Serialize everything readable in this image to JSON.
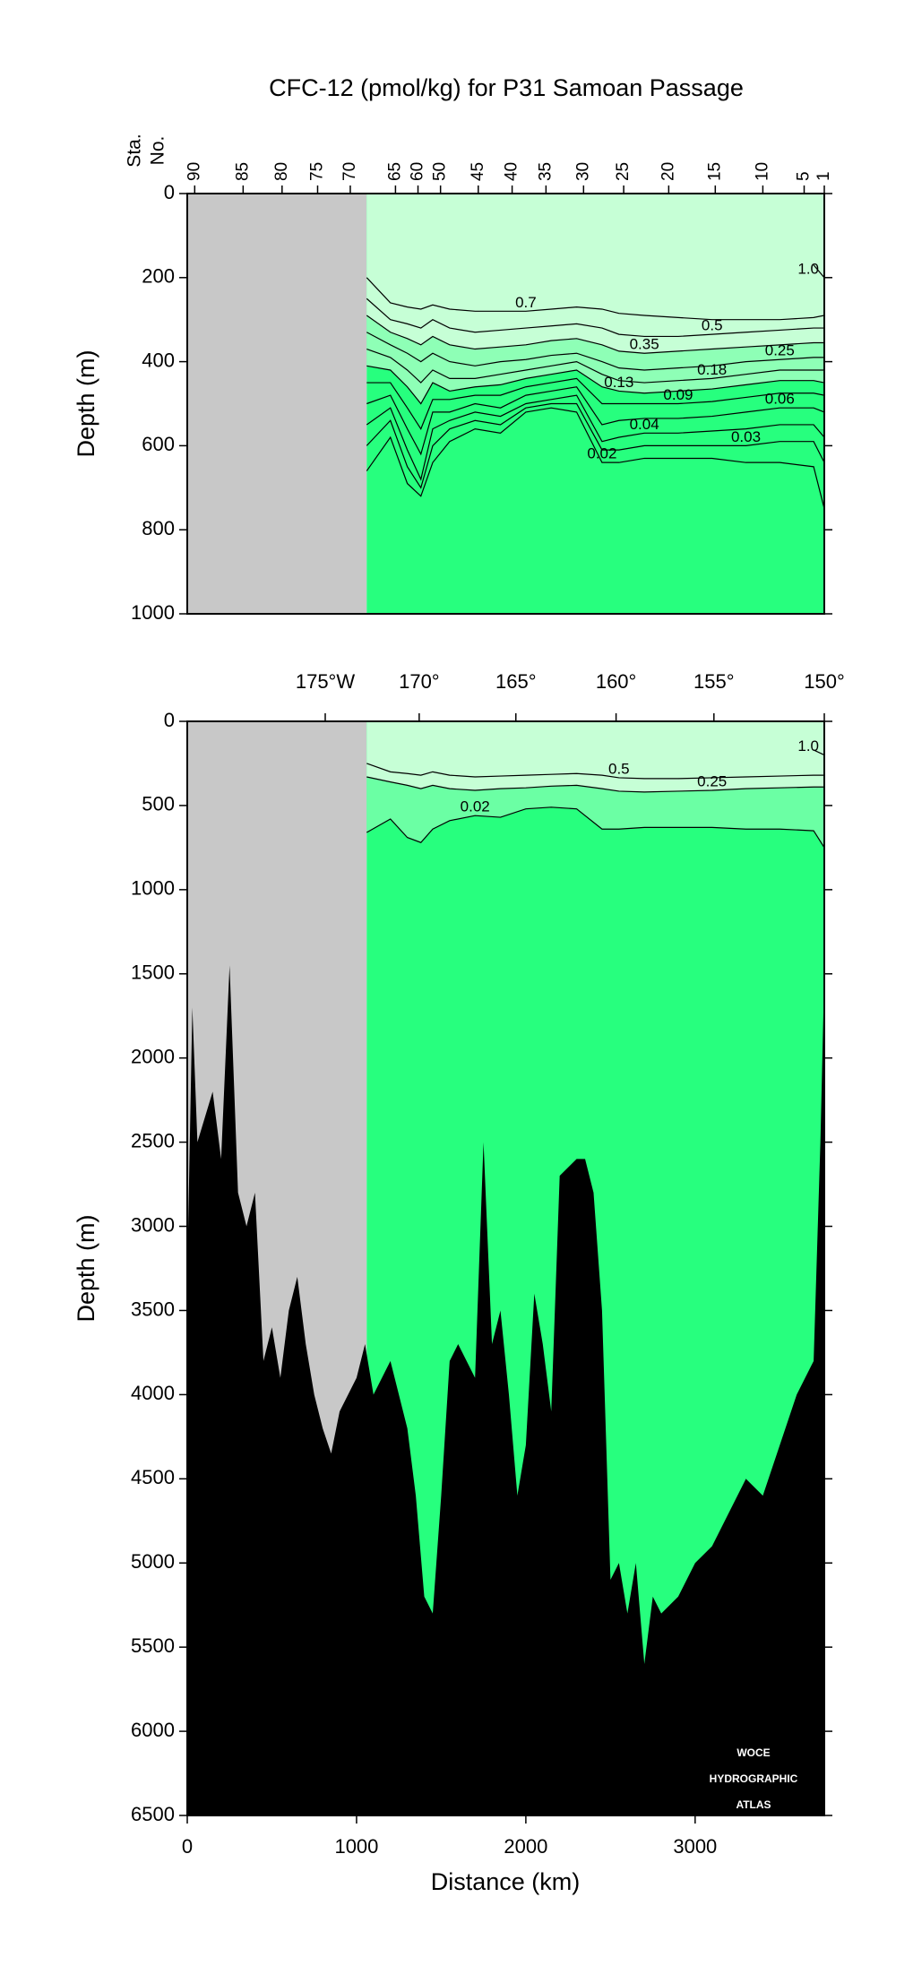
{
  "chart_data": [
    {
      "type": "section",
      "title": "CFC-12 (pmol/kg) for P31 Samoan Passage",
      "y_label": "Depth (m)",
      "station_label": [
        "Sta.",
        "No."
      ],
      "xlim": [
        0,
        3763
      ],
      "data_xlim": [
        1060,
        3763
      ],
      "ylim": [
        0,
        1000
      ],
      "yticks": [
        0,
        200,
        400,
        600,
        800,
        1000
      ],
      "station_ticks": [
        {
          "value": 44,
          "label": "90"
        },
        {
          "value": 330,
          "label": "85"
        },
        {
          "value": 560,
          "label": "80"
        },
        {
          "value": 770,
          "label": "75"
        },
        {
          "value": 963,
          "label": "70"
        },
        {
          "value": 1230,
          "label": "65"
        },
        {
          "value": 1363,
          "label": "60"
        },
        {
          "value": 1496,
          "label": "50"
        },
        {
          "value": 1719,
          "label": "45"
        },
        {
          "value": 1919,
          "label": "40"
        },
        {
          "value": 2119,
          "label": "35"
        },
        {
          "value": 2341,
          "label": "30"
        },
        {
          "value": 2578,
          "label": "25"
        },
        {
          "value": 2844,
          "label": "20"
        },
        {
          "value": 3119,
          "label": "15"
        },
        {
          "value": 3400,
          "label": "10"
        },
        {
          "value": 3644,
          "label": "5"
        },
        {
          "value": 3763,
          "label": "1"
        }
      ],
      "colors": {
        "no_data": "#c8c8c8",
        "ocean": "#27ff7e",
        "contour": "#000000",
        "frame": "#000000"
      },
      "contour_x": [
        1060,
        1200,
        1300,
        1380,
        1450,
        1550,
        1700,
        1850,
        2000,
        2150,
        2300,
        2450,
        2550,
        2700,
        2900,
        3100,
        3300,
        3500,
        3700,
        3763
      ],
      "contours": [
        {
          "level": {
            "value": 1,
            "label": "1.0"
          },
          "depth": [
            null,
            null,
            null,
            null,
            null,
            null,
            null,
            null,
            null,
            null,
            null,
            null,
            null,
            null,
            null,
            null,
            null,
            null,
            170,
            200
          ]
        },
        {
          "level": 0.7,
          "depth": [
            200,
            260,
            270,
            275,
            265,
            275,
            280,
            280,
            280,
            275,
            270,
            275,
            285,
            290,
            295,
            300,
            300,
            300,
            295,
            290
          ]
        },
        {
          "level": 0.5,
          "depth": [
            250,
            300,
            310,
            320,
            300,
            320,
            330,
            325,
            320,
            315,
            310,
            320,
            335,
            340,
            340,
            335,
            330,
            325,
            320,
            320
          ]
        },
        {
          "level": 0.35,
          "fill_above": "#c6ffd6",
          "depth": [
            290,
            330,
            345,
            360,
            340,
            360,
            370,
            365,
            360,
            350,
            345,
            360,
            375,
            380,
            375,
            370,
            365,
            360,
            355,
            355
          ]
        },
        {
          "level": 0.25,
          "depth": [
            330,
            360,
            380,
            400,
            380,
            400,
            410,
            400,
            395,
            385,
            380,
            400,
            415,
            420,
            415,
            410,
            400,
            395,
            390,
            390
          ]
        },
        {
          "level": 0.18,
          "depth": [
            370,
            390,
            420,
            450,
            420,
            440,
            440,
            430,
            420,
            410,
            400,
            430,
            445,
            450,
            445,
            440,
            430,
            420,
            420,
            420
          ]
        },
        {
          "level": 0.13,
          "fill_above": "#8effb6",
          "depth": [
            410,
            420,
            460,
            500,
            450,
            470,
            460,
            455,
            440,
            430,
            420,
            460,
            470,
            475,
            470,
            465,
            455,
            445,
            445,
            450
          ]
        },
        {
          "level": 0.09,
          "depth": [
            450,
            450,
            510,
            560,
            490,
            490,
            480,
            480,
            460,
            450,
            440,
            500,
            500,
            500,
            500,
            495,
            485,
            475,
            475,
            480
          ]
        },
        {
          "level": 0.06,
          "depth": [
            500,
            480,
            560,
            620,
            520,
            520,
            500,
            510,
            480,
            470,
            460,
            550,
            540,
            535,
            535,
            530,
            520,
            510,
            510,
            520
          ]
        },
        {
          "level": 0.04,
          "depth": [
            550,
            510,
            610,
            680,
            560,
            540,
            520,
            530,
            500,
            490,
            480,
            590,
            580,
            570,
            570,
            565,
            560,
            550,
            550,
            580
          ]
        },
        {
          "level": 0.03,
          "depth": [
            600,
            540,
            650,
            700,
            600,
            560,
            540,
            550,
            510,
            500,
            500,
            610,
            610,
            600,
            600,
            600,
            600,
            590,
            590,
            640
          ]
        },
        {
          "level": 0.02,
          "depth": [
            660,
            580,
            690,
            720,
            640,
            590,
            560,
            570,
            520,
            510,
            520,
            640,
            640,
            630,
            630,
            630,
            640,
            640,
            650,
            750
          ]
        }
      ]
    },
    {
      "type": "section",
      "y_label": "Depth (m)",
      "x_label": "Distance (km)",
      "xlim": [
        0,
        3763
      ],
      "data_xlim": [
        1060,
        3763
      ],
      "ylim": [
        0,
        6500
      ],
      "yticks": [
        0,
        500,
        1000,
        1500,
        2000,
        2500,
        3000,
        3500,
        4000,
        4500,
        5000,
        5500,
        6000,
        6500
      ],
      "xticks": [
        0,
        1000,
        2000,
        3000
      ],
      "longitude_ticks": [
        {
          "value": 815,
          "label": "175°W"
        },
        {
          "value": 1370,
          "label": "170°"
        },
        {
          "value": 1941,
          "label": "165°"
        },
        {
          "value": 2533,
          "label": "160°"
        },
        {
          "value": 3111,
          "label": "155°"
        },
        {
          "value": 3763,
          "label": "150°"
        }
      ],
      "colors": {
        "no_data": "#c8c8c8",
        "ocean": "#27ff7e",
        "contour": "#000000",
        "frame": "#000000",
        "bathymetry": "#000000",
        "watermark": "#ffffff"
      },
      "contour_x": [
        1060,
        1200,
        1300,
        1380,
        1450,
        1550,
        1700,
        1850,
        2000,
        2150,
        2300,
        2450,
        2550,
        2700,
        2900,
        3100,
        3300,
        3500,
        3700,
        3763
      ],
      "contours": [
        {
          "level": {
            "value": 1,
            "label": "1.0"
          },
          "depth": [
            null,
            null,
            null,
            null,
            null,
            null,
            null,
            null,
            null,
            null,
            null,
            null,
            null,
            null,
            null,
            null,
            null,
            null,
            170,
            200
          ]
        },
        {
          "level": 0.5,
          "depth": [
            250,
            300,
            310,
            320,
            300,
            320,
            330,
            325,
            320,
            315,
            310,
            320,
            335,
            340,
            340,
            335,
            330,
            325,
            320,
            320
          ]
        },
        {
          "level": 0.25,
          "fill_above": "#c6ffd6",
          "depth": [
            330,
            360,
            380,
            400,
            380,
            400,
            410,
            400,
            395,
            385,
            380,
            400,
            415,
            420,
            415,
            410,
            400,
            395,
            390,
            390
          ]
        },
        {
          "level": 0.02,
          "fill_above": "#6bffa4",
          "depth": [
            660,
            580,
            690,
            720,
            640,
            590,
            560,
            570,
            520,
            510,
            520,
            640,
            640,
            630,
            630,
            630,
            640,
            640,
            650,
            750
          ]
        }
      ],
      "bathymetry": {
        "x": [
          0,
          30,
          60,
          150,
          200,
          250,
          300,
          350,
          400,
          450,
          500,
          550,
          600,
          650,
          700,
          750,
          800,
          850,
          900,
          950,
          1000,
          1050,
          1100,
          1200,
          1300,
          1350,
          1400,
          1450,
          1500,
          1550,
          1600,
          1700,
          1750,
          1800,
          1850,
          1900,
          1950,
          2000,
          2050,
          2100,
          2150,
          2200,
          2300,
          2350,
          2400,
          2450,
          2500,
          2550,
          2600,
          2650,
          2700,
          2750,
          2800,
          2900,
          3000,
          3100,
          3200,
          3300,
          3400,
          3500,
          3600,
          3700,
          3740,
          3763
        ],
        "depth": [
          3300,
          1700,
          2500,
          2200,
          2600,
          1450,
          2800,
          3000,
          2800,
          3800,
          3600,
          3900,
          3500,
          3300,
          3700,
          4000,
          4200,
          4350,
          4100,
          4000,
          3900,
          3700,
          4000,
          3800,
          4200,
          4600,
          5200,
          5300,
          4600,
          3800,
          3700,
          3900,
          2500,
          3700,
          3500,
          4000,
          4600,
          4300,
          3400,
          3700,
          4100,
          2700,
          2600,
          2600,
          2800,
          3500,
          5100,
          5000,
          5300,
          5000,
          5600,
          5200,
          5300,
          5200,
          5000,
          4900,
          4700,
          4500,
          4600,
          4300,
          4000,
          3800,
          2500,
          1500
        ]
      },
      "watermark": [
        "WOCE",
        "HYDROGRAPHIC",
        "ATLAS"
      ]
    }
  ]
}
